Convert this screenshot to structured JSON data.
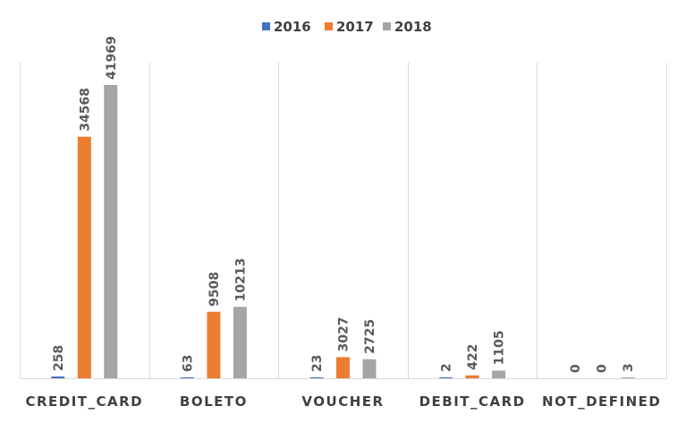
{
  "chart_data": {
    "type": "bar",
    "categories": [
      "CREDIT_CARD",
      "BOLETO",
      "VOUCHER",
      "DEBIT_CARD",
      "NOT_DEFINED"
    ],
    "series": [
      {
        "name": "2016",
        "color": "#4472c4",
        "values": [
          258,
          63,
          23,
          2,
          0
        ]
      },
      {
        "name": "2017",
        "color": "#ed7d31",
        "values": [
          34568,
          9508,
          3027,
          422,
          0
        ]
      },
      {
        "name": "2018",
        "color": "#a5a5a5",
        "values": [
          41969,
          10213,
          2725,
          1105,
          3
        ]
      }
    ],
    "ylim": [
      0,
      45000
    ],
    "data_labels": true,
    "data_label_rotation": "vertical",
    "legend_position": "top-center",
    "grid": false,
    "category_separators": true
  }
}
